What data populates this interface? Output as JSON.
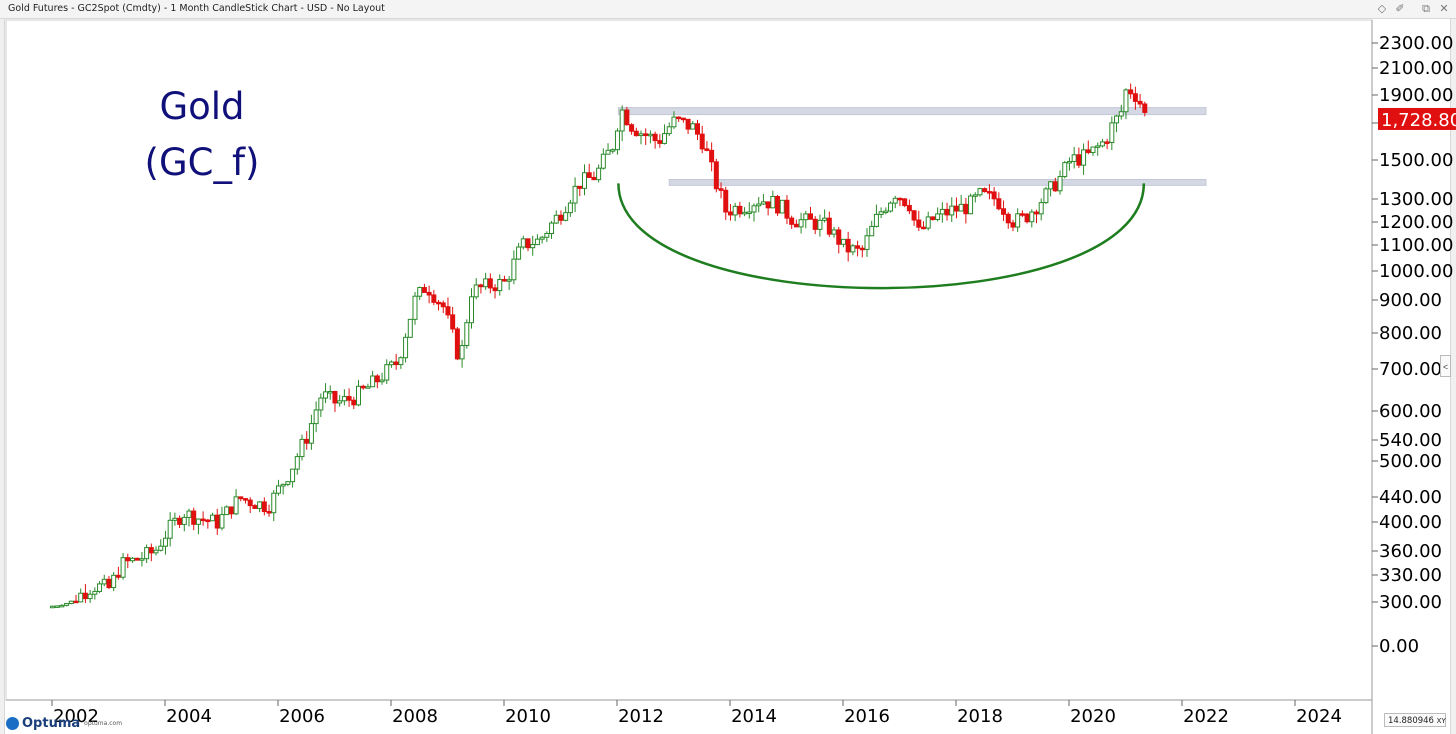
{
  "window": {
    "title": "Gold Futures - GC2Spot (Cmdty) - 1 Month CandleStick Chart - USD - No Layout",
    "controls": [
      "diamond-icon",
      "pin-icon",
      "restore-icon",
      "close-icon"
    ]
  },
  "annotation": {
    "line1": "Gold",
    "line2": "(GC_f)"
  },
  "footer": {
    "logo_name": "Optuma",
    "logo_url": "optuma.com",
    "scale_value": "14.880946",
    "scale_mode": "XY",
    "expand_glyph": "<"
  },
  "chart_data": {
    "type": "candlestick",
    "interval": "1 Month",
    "y_scale": "log",
    "ylim": [
      0,
      2300
    ],
    "y_ticks": [
      "2300.00",
      "2100.00",
      "1900.00",
      "1700.00",
      "1500.00",
      "1300.00",
      "1200.00",
      "1100.00",
      "1000.00",
      "900.00",
      "800.00",
      "700.00",
      "600.00",
      "540.00",
      "500.00",
      "440.00",
      "400.00",
      "360.00",
      "330.00",
      "300.00",
      "0.00"
    ],
    "x_ticks": [
      "2002",
      "2004",
      "2006",
      "2008",
      "2010",
      "2012",
      "2014",
      "2016",
      "2018",
      "2020",
      "2022",
      "2024"
    ],
    "last_price_label": "1,728.80",
    "last_price": 1728.8,
    "colors": {
      "up": "#2a8a2a",
      "down": "#e01010",
      "last_price_bg": "#e01010",
      "band": "#d4d8e4",
      "arc": "#1e7d1e",
      "annotation": "#10107a"
    },
    "series": [
      {
        "name": "",
        "x": [
          2001.5,
          2001.7,
          2002.0,
          2002.3,
          2002.6,
          2002.8,
          2003.1,
          2003.4,
          2003.6,
          2003.9,
          2004.2,
          2004.5,
          2004.9,
          2005.4,
          2005.8,
          2006.1,
          2006.35,
          2006.6,
          2006.9,
          2007.3,
          2007.7,
          2008.0,
          2008.2,
          2008.5,
          2008.8,
          2009.0,
          2009.3,
          2009.6,
          2009.9,
          2010.2,
          2010.6,
          2010.9,
          2011.2,
          2011.5,
          2011.65,
          2011.8,
          2012.0,
          2012.3,
          2012.6,
          2012.9,
          2013.1,
          2013.3,
          2013.5,
          2013.8,
          2014.1,
          2014.4,
          2014.7,
          2015.0,
          2015.3,
          2015.6,
          2015.9,
          2016.2,
          2016.5,
          2016.75,
          2016.9,
          2017.2,
          2017.5,
          2017.8,
          2018.0,
          2018.3,
          2018.6,
          2018.8,
          2019.1,
          2019.4,
          2019.6,
          2019.9,
          2020.2,
          2020.5,
          2020.6,
          2020.8,
          2020.95
        ],
        "values": [
          265,
          280,
          305,
          318,
          315,
          343,
          350,
          360,
          385,
          415,
          405,
          400,
          438,
          425,
          485,
          550,
          640,
          620,
          630,
          670,
          720,
          900,
          950,
          880,
          720,
          930,
          950,
          960,
          1100,
          1120,
          1250,
          1380,
          1420,
          1580,
          1800,
          1700,
          1650,
          1600,
          1720,
          1680,
          1600,
          1400,
          1250,
          1270,
          1300,
          1280,
          1210,
          1200,
          1180,
          1090,
          1070,
          1230,
          1330,
          1280,
          1150,
          1220,
          1250,
          1270,
          1320,
          1300,
          1200,
          1220,
          1300,
          1400,
          1500,
          1520,
          1600,
          1780,
          1960,
          1880,
          1728.8
        ]
      }
    ],
    "bands": [
      {
        "name": "",
        "low": 1760,
        "high": 1810,
        "x_start": 2011.6,
        "x_end": 2022.0
      },
      {
        "name": "",
        "low": 1370,
        "high": 1400,
        "x_start": 2012.5,
        "x_end": 2022.0
      }
    ],
    "arc": {
      "x_start": 2011.6,
      "x_end": 2020.9,
      "y_start": 1380,
      "y_bottom": 1030
    }
  }
}
